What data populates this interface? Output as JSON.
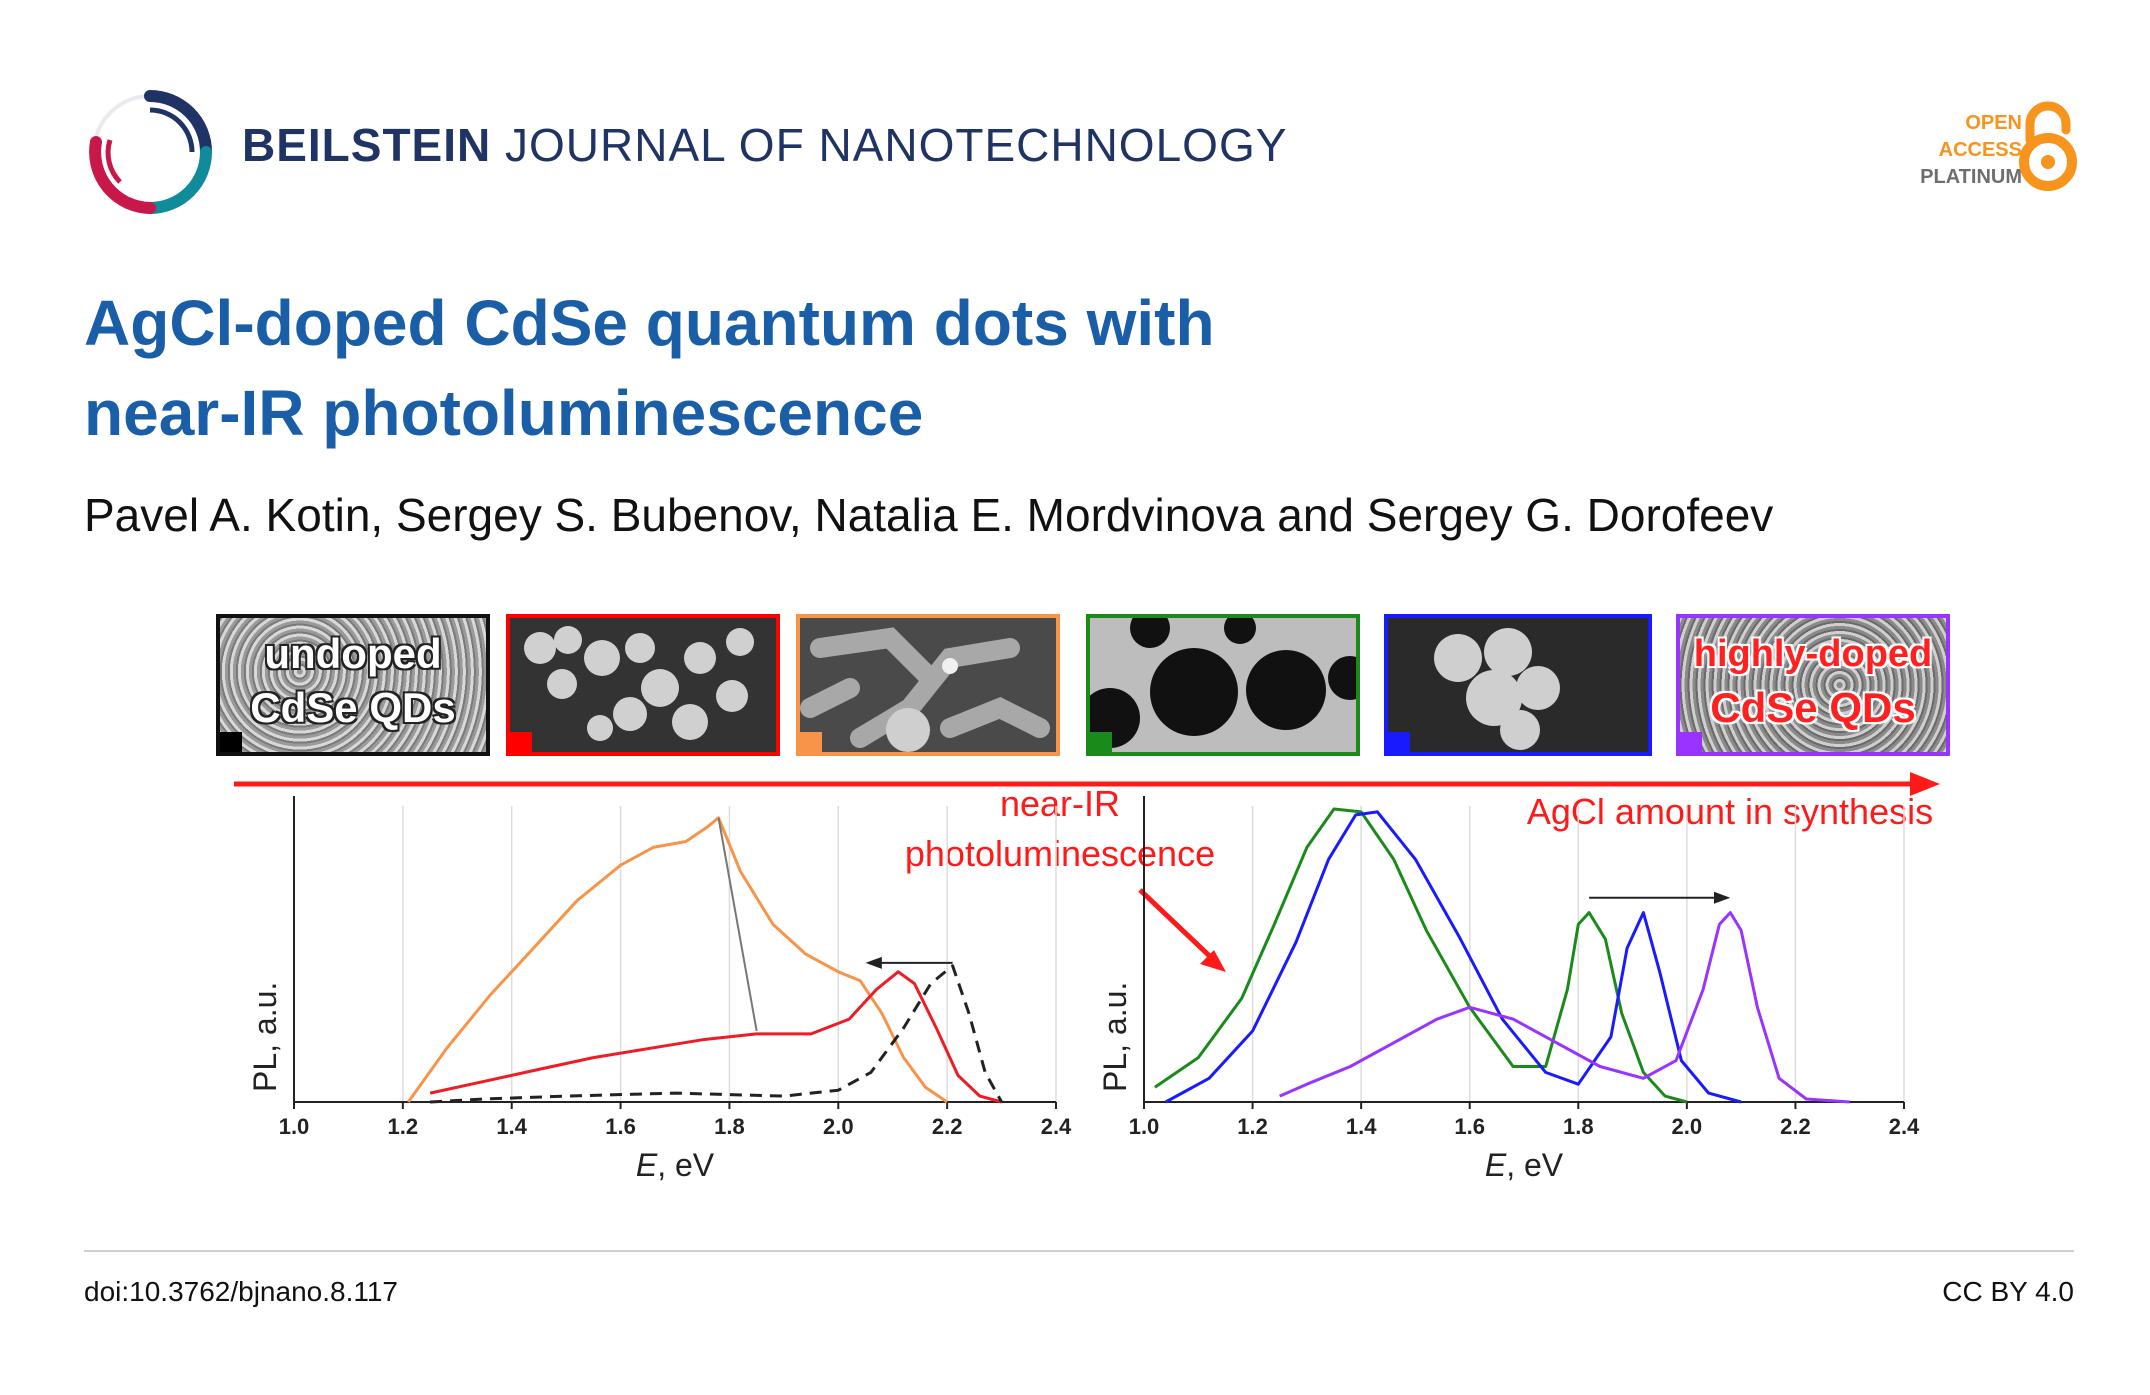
{
  "header": {
    "journal_bold": "BEILSTEIN",
    "journal_rest": "JOURNAL OF NANOTECHNOLOGY",
    "access_line1": "OPEN",
    "access_line2": "ACCESS",
    "access_line3": "PLATINUM"
  },
  "article": {
    "title_line1": "AgCl-doped CdSe quantum dots with",
    "title_line2": "near-IR photoluminescence",
    "authors": "Pavel A. Kotin, Sergey S. Bubenov, Natalia E. Mordvinova and Sergey G. Dorofeev"
  },
  "figure": {
    "thumb_undoped_line1": "undoped",
    "thumb_undoped_line2": "CdSe QDs",
    "thumb_doped_line1": "highly-doped",
    "thumb_doped_line2": "CdSe QDs",
    "arrow_label": "AgCl amount in synthesis",
    "annotation_line1": "near-IR",
    "annotation_line2": "photoluminescence",
    "thumb_colors": [
      "#000000",
      "#ff0000",
      "#f7944a",
      "#1a8a1a",
      "#1a1aff",
      "#9933ff"
    ]
  },
  "chart_data": [
    {
      "type": "line",
      "xlabel": "E, eV",
      "ylabel": "PL, a.u.",
      "xlim": [
        1.0,
        2.4
      ],
      "xticks": [
        "1.0",
        "1.2",
        "1.4",
        "1.6",
        "1.8",
        "2.0",
        "2.2",
        "2.4"
      ],
      "series": [
        {
          "color": "#f7944a",
          "style": "solid",
          "x": [
            1.21,
            1.28,
            1.36,
            1.44,
            1.52,
            1.6,
            1.66,
            1.72,
            1.76,
            1.78,
            1.82,
            1.88,
            1.94,
            2.0,
            2.04,
            2.08,
            2.12,
            2.16,
            2.2
          ],
          "y": [
            0.0,
            0.18,
            0.36,
            0.52,
            0.68,
            0.8,
            0.86,
            0.88,
            0.93,
            0.96,
            0.78,
            0.6,
            0.5,
            0.44,
            0.41,
            0.3,
            0.15,
            0.05,
            0.0
          ]
        },
        {
          "color": "#ee1c25",
          "style": "solid",
          "x": [
            1.25,
            1.35,
            1.45,
            1.55,
            1.65,
            1.75,
            1.85,
            1.95,
            2.02,
            2.07,
            2.11,
            2.14,
            2.18,
            2.22,
            2.26,
            2.3
          ],
          "y": [
            0.03,
            0.07,
            0.11,
            0.15,
            0.18,
            0.21,
            0.23,
            0.23,
            0.28,
            0.38,
            0.44,
            0.4,
            0.25,
            0.09,
            0.02,
            0.0
          ]
        },
        {
          "color": "#222222",
          "style": "dashed",
          "x": [
            1.25,
            1.35,
            1.5,
            1.7,
            1.9,
            2.0,
            2.06,
            2.12,
            2.17,
            2.21,
            2.24,
            2.27,
            2.3
          ],
          "y": [
            0.0,
            0.01,
            0.02,
            0.03,
            0.02,
            0.04,
            0.1,
            0.25,
            0.4,
            0.46,
            0.3,
            0.1,
            0.0
          ]
        }
      ]
    },
    {
      "type": "line",
      "xlabel": "E, eV",
      "ylabel": "PL, a.u.",
      "xlim": [
        1.0,
        2.4
      ],
      "xticks": [
        "1.0",
        "1.2",
        "1.4",
        "1.6",
        "1.8",
        "2.0",
        "2.2",
        "2.4"
      ],
      "series": [
        {
          "color": "#1a8a1a",
          "style": "solid",
          "x": [
            1.02,
            1.1,
            1.18,
            1.24,
            1.3,
            1.35,
            1.4,
            1.46,
            1.52,
            1.6,
            1.68,
            1.74,
            1.78,
            1.8,
            1.82,
            1.85,
            1.88,
            1.92,
            1.96,
            2.0
          ],
          "y": [
            0.05,
            0.15,
            0.35,
            0.6,
            0.86,
            0.99,
            0.98,
            0.82,
            0.58,
            0.32,
            0.12,
            0.12,
            0.38,
            0.6,
            0.64,
            0.55,
            0.3,
            0.1,
            0.02,
            0.0
          ]
        },
        {
          "color": "#1a1aff",
          "style": "solid",
          "x": [
            1.04,
            1.12,
            1.2,
            1.28,
            1.34,
            1.39,
            1.43,
            1.5,
            1.58,
            1.66,
            1.74,
            1.8,
            1.86,
            1.89,
            1.92,
            1.95,
            1.99,
            2.04,
            2.1
          ],
          "y": [
            0.0,
            0.08,
            0.24,
            0.54,
            0.82,
            0.97,
            0.98,
            0.82,
            0.56,
            0.28,
            0.1,
            0.06,
            0.22,
            0.52,
            0.64,
            0.44,
            0.14,
            0.03,
            0.0
          ]
        },
        {
          "color": "#9933ff",
          "style": "solid",
          "x": [
            1.25,
            1.3,
            1.38,
            1.46,
            1.54,
            1.6,
            1.68,
            1.76,
            1.84,
            1.92,
            1.98,
            2.03,
            2.06,
            2.08,
            2.1,
            2.13,
            2.17,
            2.22,
            2.3
          ],
          "y": [
            0.02,
            0.06,
            0.12,
            0.2,
            0.28,
            0.32,
            0.28,
            0.2,
            0.12,
            0.08,
            0.14,
            0.38,
            0.6,
            0.64,
            0.58,
            0.32,
            0.08,
            0.01,
            0.0
          ]
        }
      ]
    }
  ],
  "footer": {
    "doi": "doi:10.3762/bjnano.8.117",
    "license": "CC BY 4.0"
  }
}
